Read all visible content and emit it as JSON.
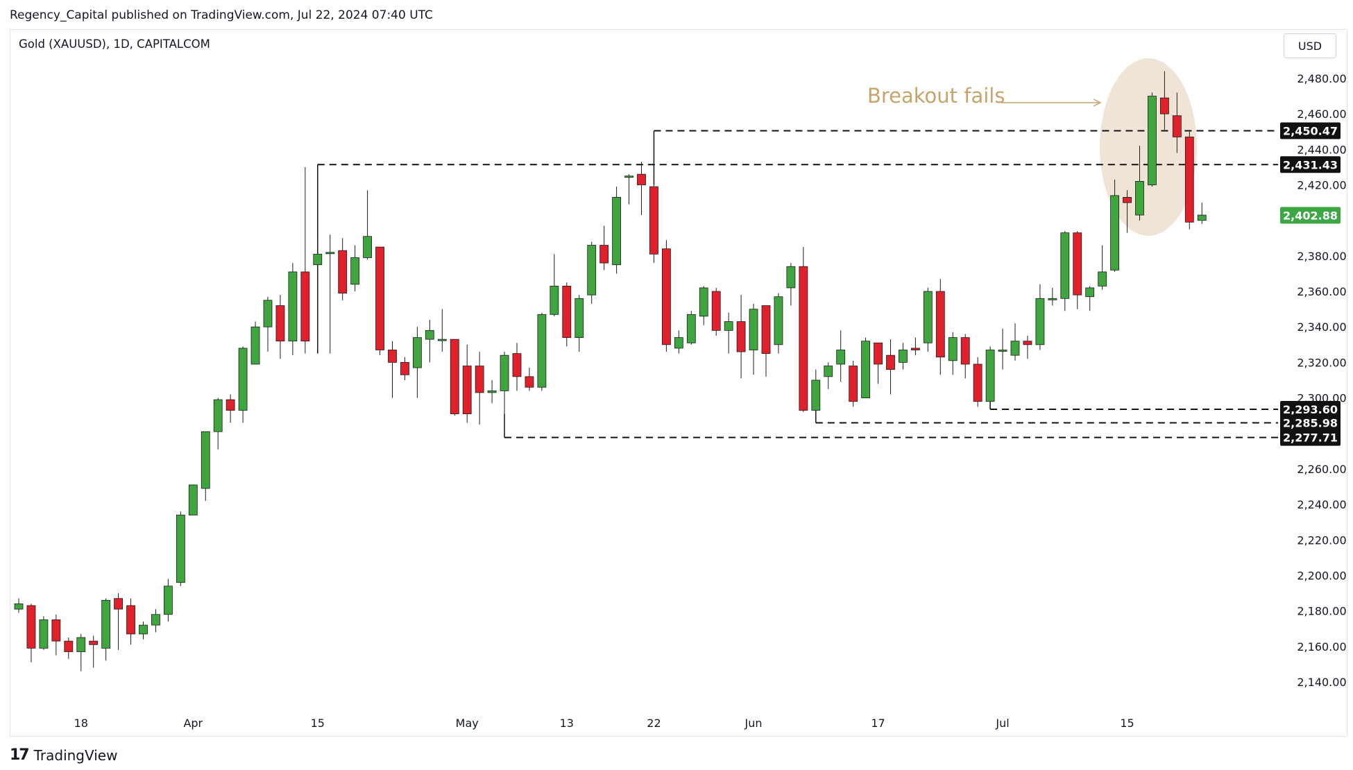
{
  "header": {
    "published_line": "Regency_Capital published on TradingView.com, Jul 22, 2024 07:40 UTC"
  },
  "chart_header": {
    "symbol_line": "Gold (XAUUSD), 1D, CAPITALCOM",
    "currency": "USD"
  },
  "branding": {
    "logo_glyph": "17",
    "name": "TradingView"
  },
  "chart_data": {
    "type": "candlestick",
    "title": "Gold (XAUUSD), 1D, CAPITALCOM",
    "ylabel": "USD",
    "ylim": [
      2125,
      2500
    ],
    "y_ticks": [
      "2,480.00",
      "2,460.00",
      "2,440.00",
      "2,420.00",
      "2,380.00",
      "2,360.00",
      "2,340.00",
      "2,320.00",
      "2,300.00",
      "2,260.00",
      "2,240.00",
      "2,220.00",
      "2,200.00",
      "2,180.00",
      "2,160.00",
      "2,140.00"
    ],
    "y_tick_values": [
      2480,
      2460,
      2440,
      2420,
      2380,
      2360,
      2340,
      2320,
      2300,
      2260,
      2240,
      2220,
      2200,
      2180,
      2160,
      2140
    ],
    "x_ticks": [
      {
        "label": "18",
        "index": 5
      },
      {
        "label": "Apr",
        "index": 14
      },
      {
        "label": "15",
        "index": 24
      },
      {
        "label": "May",
        "index": 36
      },
      {
        "label": "13",
        "index": 44
      },
      {
        "label": "22",
        "index": 51
      },
      {
        "label": "Jun",
        "index": 59
      },
      {
        "label": "17",
        "index": 69
      },
      {
        "label": "Jul",
        "index": 79
      },
      {
        "label": "15",
        "index": 89
      }
    ],
    "candles": [
      [
        2181,
        2184,
        2187,
        2179
      ],
      [
        2183,
        2159,
        2184,
        2151
      ],
      [
        2159,
        2175,
        2177,
        2158
      ],
      [
        2175,
        2163,
        2178,
        2155
      ],
      [
        2163,
        2157,
        2165,
        2153
      ],
      [
        2157,
        2165,
        2167,
        2146
      ],
      [
        2163,
        2161,
        2166,
        2148
      ],
      [
        2159,
        2186,
        2187,
        2152
      ],
      [
        2187,
        2181,
        2190,
        2158
      ],
      [
        2183,
        2167,
        2187,
        2161
      ],
      [
        2167,
        2172,
        2174,
        2164
      ],
      [
        2172,
        2178,
        2181,
        2168
      ],
      [
        2178,
        2194,
        2198,
        2174
      ],
      [
        2196,
        2234,
        2236,
        2194
      ],
      [
        2234,
        2251,
        2251,
        2238
      ],
      [
        2249,
        2281,
        2281,
        2242
      ],
      [
        2281,
        2299,
        2300,
        2271
      ],
      [
        2299,
        2293,
        2302,
        2286
      ],
      [
        2293,
        2328,
        2329,
        2286
      ],
      [
        2319,
        2340,
        2343,
        2326
      ],
      [
        2340,
        2355,
        2357,
        2326
      ],
      [
        2352,
        2332,
        2358,
        2322
      ],
      [
        2332,
        2371,
        2376,
        2324
      ],
      [
        2371,
        2332,
        2430,
        2325
      ],
      [
        2375,
        2381,
        2389,
        2327
      ],
      [
        2382,
        2382,
        2392,
        2325
      ],
      [
        2383,
        2359,
        2390,
        2355
      ],
      [
        2364,
        2379,
        2386,
        2360
      ],
      [
        2379,
        2391,
        2417,
        2378
      ],
      [
        2385,
        2327,
        2385,
        2324
      ],
      [
        2327,
        2320,
        2332,
        2300
      ],
      [
        2320,
        2313,
        2323,
        2310
      ],
      [
        2317,
        2334,
        2340,
        2300
      ],
      [
        2333,
        2338,
        2344,
        2320
      ],
      [
        2333,
        2333,
        2350,
        2326
      ],
      [
        2333,
        2291,
        2333,
        2290
      ],
      [
        2318,
        2291,
        2330,
        2286
      ],
      [
        2318,
        2303,
        2326,
        2285
      ],
      [
        2303,
        2304,
        2310,
        2297
      ],
      [
        2304,
        2324,
        2326,
        2287
      ],
      [
        2325,
        2312,
        2331,
        2304
      ],
      [
        2312,
        2306,
        2317,
        2304
      ],
      [
        2306,
        2347,
        2348,
        2304
      ],
      [
        2347,
        2363,
        2381,
        2346
      ],
      [
        2363,
        2334,
        2365,
        2329
      ],
      [
        2334,
        2356,
        2358,
        2326
      ],
      [
        2358,
        2386,
        2388,
        2353
      ],
      [
        2386,
        2376,
        2397,
        2372
      ],
      [
        2375,
        2413,
        2419,
        2370
      ],
      [
        2425,
        2425,
        2426,
        2409
      ],
      [
        2426,
        2420,
        2433,
        2403
      ],
      [
        2419,
        2381,
        2423,
        2376
      ],
      [
        2384,
        2330,
        2389,
        2326
      ],
      [
        2328,
        2334,
        2338,
        2325
      ],
      [
        2331,
        2347,
        2349,
        2330
      ],
      [
        2346,
        2362,
        2363,
        2341
      ],
      [
        2360,
        2338,
        2362,
        2335
      ],
      [
        2338,
        2343,
        2348,
        2325
      ],
      [
        2343,
        2326,
        2358,
        2311
      ],
      [
        2327,
        2350,
        2353,
        2313
      ],
      [
        2352,
        2325,
        2352,
        2312
      ],
      [
        2330,
        2357,
        2359,
        2325
      ],
      [
        2362,
        2374,
        2376,
        2352
      ],
      [
        2374,
        2293,
        2385,
        2292
      ],
      [
        2293,
        2310,
        2316,
        2288
      ],
      [
        2312,
        2318,
        2320,
        2305
      ],
      [
        2319,
        2327,
        2338,
        2309
      ],
      [
        2318,
        2298,
        2321,
        2295
      ],
      [
        2300,
        2332,
        2334,
        2300
      ],
      [
        2331,
        2319,
        2331,
        2308
      ],
      [
        2324,
        2316,
        2333,
        2302
      ],
      [
        2320,
        2327,
        2331,
        2316
      ],
      [
        2328,
        2327,
        2334,
        2324
      ],
      [
        2331,
        2360,
        2362,
        2326
      ],
      [
        2360,
        2323,
        2367,
        2313
      ],
      [
        2321,
        2334,
        2337,
        2313
      ],
      [
        2334,
        2319,
        2336,
        2311
      ],
      [
        2319,
        2298,
        2323,
        2295
      ],
      [
        2298,
        2327,
        2329,
        2295
      ],
      [
        2327,
        2327,
        2339,
        2316
      ],
      [
        2324,
        2332,
        2342,
        2321
      ],
      [
        2332,
        2330,
        2335,
        2322
      ],
      [
        2330,
        2356,
        2364,
        2327
      ],
      [
        2356,
        2356,
        2362,
        2352
      ],
      [
        2356,
        2393,
        2394,
        2349
      ],
      [
        2393,
        2358,
        2394,
        2350
      ],
      [
        2357,
        2362,
        2363,
        2349
      ],
      [
        2363,
        2371,
        2386,
        2361
      ],
      [
        2372,
        2414,
        2423,
        2371
      ],
      [
        2413,
        2410,
        2417,
        2393
      ],
      [
        2403,
        2422,
        2442,
        2400
      ],
      [
        2420,
        2470,
        2472,
        2419
      ],
      [
        2469,
        2460,
        2484,
        2451
      ],
      [
        2459,
        2447,
        2472,
        2438
      ],
      [
        2447,
        2399,
        2450,
        2395
      ],
      [
        2400,
        2403,
        2410,
        2398
      ]
    ],
    "levels": [
      {
        "label": "2,450.47",
        "value": 2450.47,
        "from_index": 51
      },
      {
        "label": "2,431.43",
        "value": 2431.43,
        "from_index": 24
      },
      {
        "label": "2,293.60",
        "value": 2293.6,
        "from_index": 78
      },
      {
        "label": "2,285.98",
        "value": 2285.98,
        "from_index": 64
      },
      {
        "label": "2,277.71",
        "value": 2277.71,
        "from_index": 39
      }
    ],
    "last_price": {
      "label": "2,402.88",
      "value": 2402.88
    },
    "annotation": {
      "text": "Breakout fails"
    },
    "colors": {
      "up": "#3fa53f",
      "down": "#e0202b",
      "wick": "#1c1c1c",
      "level_line": "#111111",
      "level_tag": "#111111",
      "last_price_tag": "#3da744",
      "highlight": "#efe4d6",
      "annotation": "#c9a46a"
    }
  }
}
